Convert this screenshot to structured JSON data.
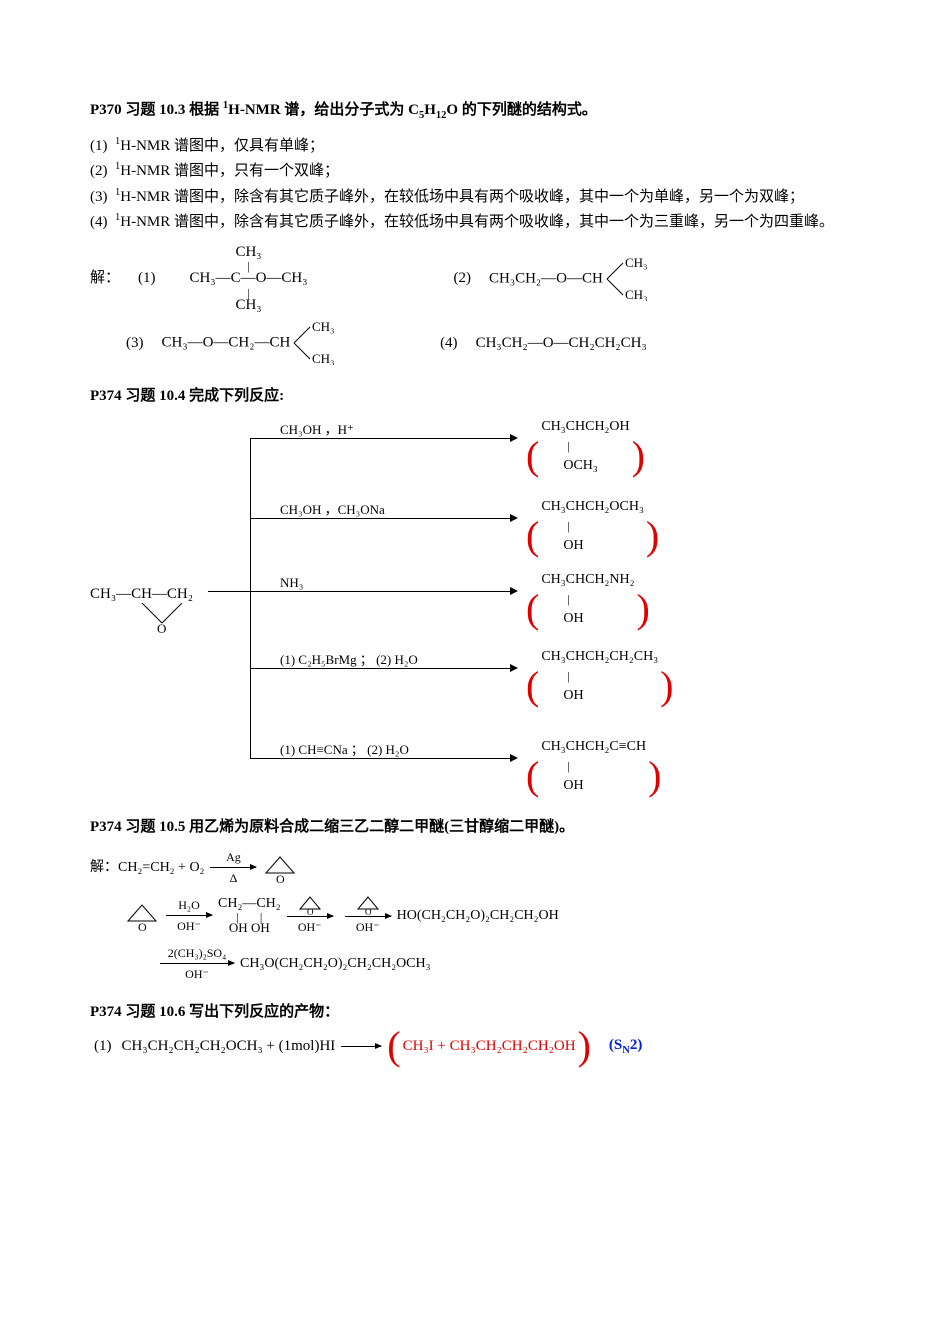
{
  "q103": {
    "heading_prefix": "P370  习题 10.3   根据 ",
    "heading_nmr_sup": "1",
    "heading_nmr": "H-NMR 谱，给出分子式为 C",
    "heading_c_sub": "5",
    "heading_h": "H",
    "heading_h_sub": "12",
    "heading_o": "O 的下列醚的结构式。",
    "items": [
      "H-NMR 谱图中，仅具有单峰；",
      "H-NMR 谱图中，只有一个双峰；",
      "H-NMR 谱图中，除含有其它质子峰外，在较低场中具有两个吸收峰，其中一个为单峰，另一个为双峰；",
      "H-NMR 谱图中，除含有其它质子峰外，在较低场中具有两个吸收峰，其中一个为三重峰，另一个为四重峰。"
    ],
    "answer_label": "解：",
    "s1_top": "CH₃",
    "s1_mid": "CH₃—C—O—CH₃",
    "s1_bot": "CH₃",
    "s2_mid": "CH₃CH₂—O—CH",
    "s2_top": "CH₃",
    "s2_bot": "CH₃",
    "s3_mid": "CH₃—O—CH₂—CH",
    "s3_top": "CH₃",
    "s3_bot": "CH₃",
    "s4": "CH₃CH₂—O—CH₂CH₂CH₃"
  },
  "q104": {
    "heading": "P374   习题 10.4    完成下列反应:",
    "starting": "CH₃—CH—CH₂",
    "starting_o": "O",
    "reagents": [
      "CH₃OH ，H⁺",
      "CH₃OH ，CH₃ONa",
      "NH₃",
      "(1)  C₂H₅BrMg ； (2) H₂O",
      "(1)   CH≡CNa  ； (2)  H₂O"
    ],
    "products": [
      {
        "l1": "CH₃CHCH₂OH",
        "l2": "OCH₃"
      },
      {
        "l1": "CH₃CHCH₂OCH₃",
        "l2": "OH"
      },
      {
        "l1": "CH₃CHCH₂NH₂",
        "l2": "OH"
      },
      {
        "l1": "CH₃CHCH₂CH₂CH₃",
        "l2": "OH"
      },
      {
        "l1": "CH₃CHCH₂C≡CH",
        "l2": "OH"
      }
    ]
  },
  "q105": {
    "heading": "P374   习题 10.5    用乙烯为原料合成二缩三乙二醇二甲醚(三甘醇缩二甲醚)。",
    "answer_label": "解：",
    "line1_a": "CH₂=CH₂  +  O₂",
    "line1_r_top": "Ag",
    "line1_r_bot": "Δ",
    "line2_r1_top": "H₂O",
    "line2_r1_bot": "OH⁻",
    "line2_mid_top": "CH₂—CH₂",
    "line2_mid_bot": "OH      OH",
    "line2_r2_bot": "OH⁻",
    "line2_r3_bot": "OH⁻",
    "line2_prod": "HO(CH₂CH₂O)₂CH₂CH₂OH",
    "line3_r_top": "2(CH₃)₂SO₄",
    "line3_r_bot": "OH⁻",
    "line3_prod": "CH₃O(CH₂CH₂O)₂CH₂CH₂OCH₃"
  },
  "q106": {
    "heading": "P374   习题 10.6 写出下列反应的产物：",
    "item1_a": "CH₃CH₂CH₂CH₂OCH₃  +  (1mol)HI",
    "item1_p": "CH₃I  +  CH₃CH₂CH₂CH₂OH",
    "sn2": "(S",
    "sn2_sub": "N",
    "sn2_end": "2)"
  },
  "colors": {
    "red": "#e00000",
    "blue": "#0020d0",
    "text": "#000000",
    "bg": "#ffffff"
  }
}
